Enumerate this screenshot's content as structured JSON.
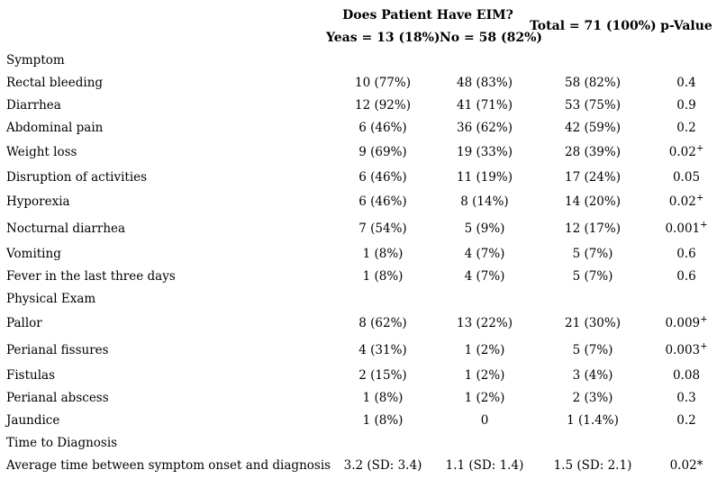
{
  "header": {
    "span_title": "Does Patient Have EIM?",
    "col_yes": "Yeas = 13 (18%)",
    "col_no": "No = 58 (82%)",
    "col_total": "Total = 71 (100%)",
    "col_p": "p-Value"
  },
  "rows": [
    {
      "label": "Symptom",
      "section": true
    },
    {
      "label": "Rectal bleeding",
      "yes": "10 (77%)",
      "no": "48 (83%)",
      "total": "58 (82%)",
      "p": "0.4"
    },
    {
      "label": "Diarrhea",
      "yes": "12 (92%)",
      "no": "41 (71%)",
      "total": "53 (75%)",
      "p": "0.9"
    },
    {
      "label": "Abdominal pain",
      "yes": "6 (46%)",
      "no": "36 (62%)",
      "total": "42 (59%)",
      "p": "0.2"
    },
    {
      "label": "Weight loss",
      "yes": "9 (69%)",
      "no": "19 (33%)",
      "total": "28 (39%)",
      "p": "0.02",
      "p_sup": "+"
    },
    {
      "label": "Disruption of activities",
      "yes": "6 (46%)",
      "no": "11 (19%)",
      "total": "17 (24%)",
      "p": "0.05"
    },
    {
      "label": "Hyporexia",
      "yes": "6 (46%)",
      "no": "8 (14%)",
      "total": "14 (20%)",
      "p": "0.02",
      "p_sup": "+"
    },
    {
      "label": "Nocturnal diarrhea",
      "yes": "7 (54%)",
      "no": "5 (9%)",
      "total": "12 (17%)",
      "p": "0.001",
      "p_sup": "+"
    },
    {
      "label": "Vomiting",
      "yes": "1 (8%)",
      "no": "4 (7%)",
      "total": "5 (7%)",
      "p": "0.6"
    },
    {
      "label": "Fever in the last three days",
      "yes": "1 (8%)",
      "no": "4 (7%)",
      "total": "5 (7%)",
      "p": "0.6"
    },
    {
      "label": "Physical Exam",
      "section": true
    },
    {
      "label": "Pallor",
      "yes": "8 (62%)",
      "no": "13 (22%)",
      "total": "21 (30%)",
      "p": "0.009",
      "p_sup": "+"
    },
    {
      "label": "Perianal fissures",
      "yes": "4 (31%)",
      "no": "1 (2%)",
      "total": "5 (7%)",
      "p": "0.003",
      "p_sup": "+"
    },
    {
      "label": "Fistulas",
      "yes": "2 (15%)",
      "no": "1 (2%)",
      "total": "3 (4%)",
      "p": "0.08"
    },
    {
      "label": "Perianal abscess",
      "yes": "1 (8%)",
      "no": "1 (2%)",
      "total": "2 (3%)",
      "p": "0.3"
    },
    {
      "label": "Jaundice",
      "yes": "1 (8%)",
      "no": "0",
      "total": "1 (1.4%)",
      "p": "0.2"
    },
    {
      "label": "Time to Diagnosis",
      "section": true
    },
    {
      "label": "Average time between symptom onset and diagnosis",
      "yes": "3.2 (SD: 3.4)",
      "no": "1.1 (SD: 1.4)",
      "total": "1.5 (SD: 2.1)",
      "p": "0.02*"
    }
  ]
}
